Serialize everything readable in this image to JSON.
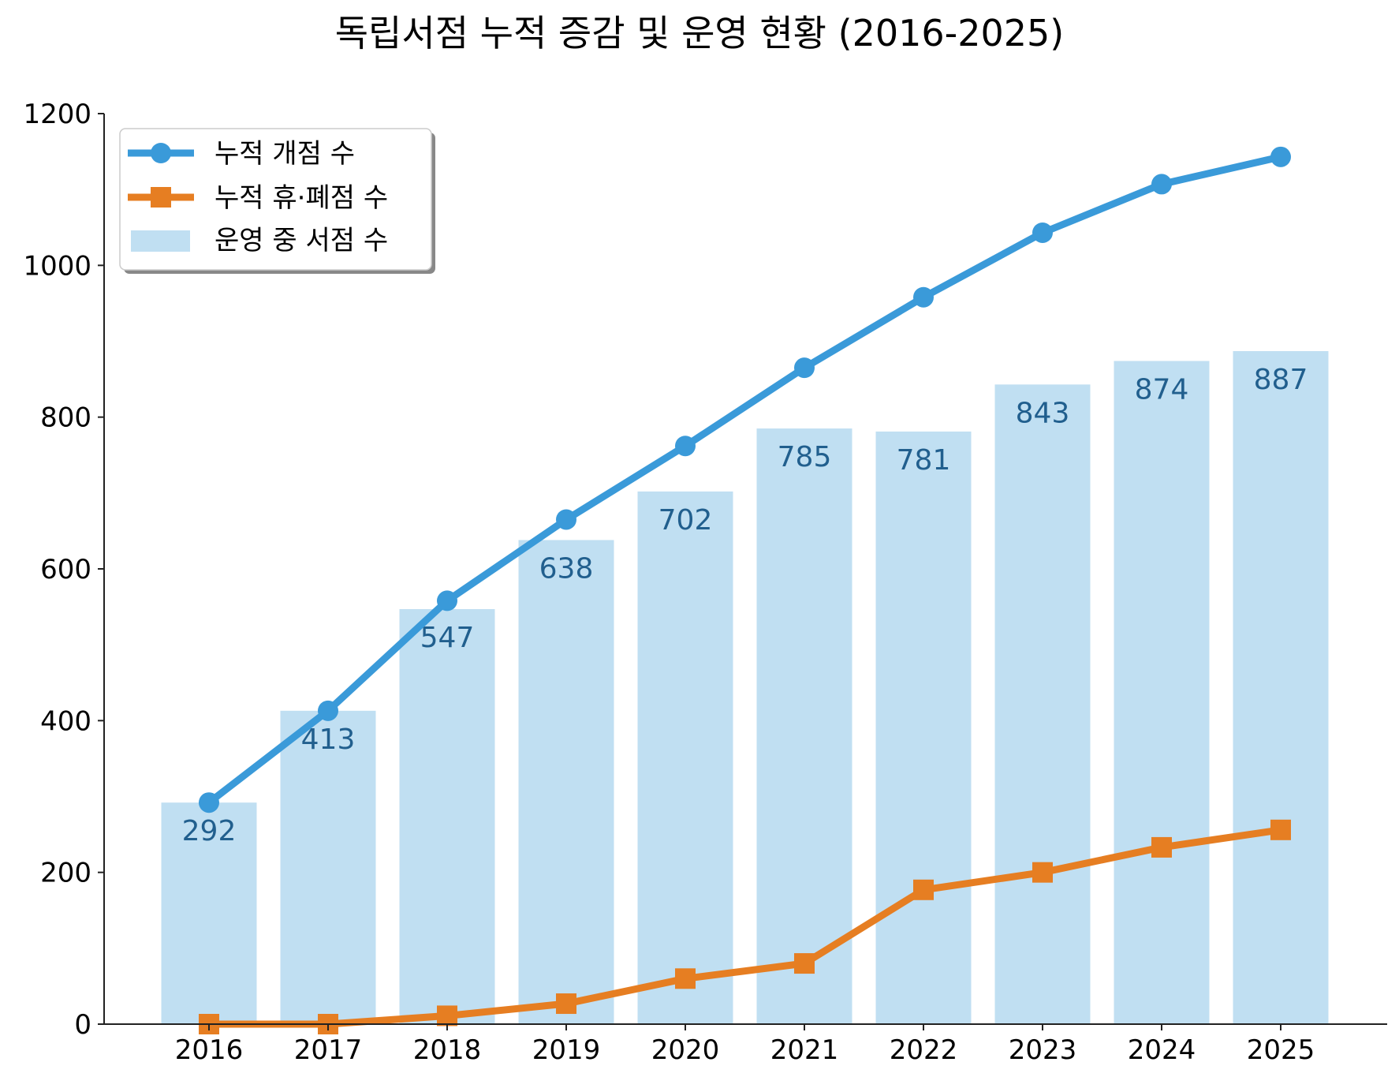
{
  "chart_data": {
    "type": "bar+line",
    "title": "독립서점 누적 증감 및 운영 현황 (2016-2025)",
    "xlabel": "",
    "ylabel": "",
    "categories": [
      "2016",
      "2017",
      "2018",
      "2019",
      "2020",
      "2021",
      "2022",
      "2023",
      "2024",
      "2025"
    ],
    "ylim": [
      0,
      1200
    ],
    "yticks": [
      0,
      200,
      400,
      600,
      800,
      1000,
      1200
    ],
    "grid": false,
    "legend_position": "top-left",
    "series": [
      {
        "name": "누적 개점 수",
        "kind": "line",
        "marker": "circle",
        "color": "#3a9ad9",
        "values": [
          292,
          413,
          558,
          665,
          762,
          865,
          958,
          1043,
          1107,
          1143
        ]
      },
      {
        "name": "누적 휴·폐점 수",
        "kind": "line",
        "marker": "square",
        "color": "#e67e22",
        "values": [
          0,
          0,
          11,
          27,
          60,
          80,
          177,
          200,
          233,
          256
        ]
      },
      {
        "name": "운영 중 서점 수",
        "kind": "bar",
        "color": "#c0dff2",
        "label_color": "#215f8e",
        "values": [
          292,
          413,
          547,
          638,
          702,
          785,
          781,
          843,
          874,
          887
        ],
        "labels": [
          "292",
          "413",
          "547",
          "638",
          "702",
          "785",
          "781",
          "843",
          "874",
          "887"
        ]
      }
    ]
  }
}
